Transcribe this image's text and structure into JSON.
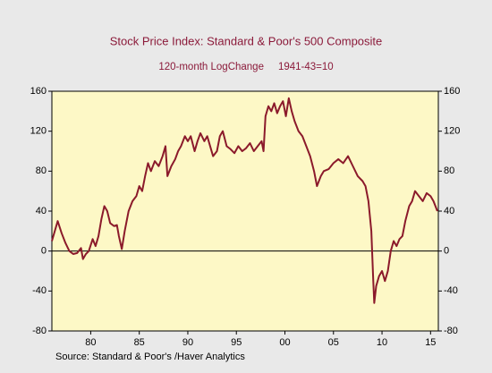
{
  "chart_data": {
    "type": "line",
    "title": "Stock Price Index: Standard & Poor's 500 Composite",
    "subtitle": "120-month LogChange     1941-43=10",
    "source": "Source:  Standard & Poor's /Haver Analytics",
    "mirror_y_axis": true,
    "zero_line": true,
    "xlim": [
      1976,
      2015.8
    ],
    "xticks": [
      {
        "value": 1980,
        "label": "80"
      },
      {
        "value": 1985,
        "label": "85"
      },
      {
        "value": 1990,
        "label": "90"
      },
      {
        "value": 1995,
        "label": "95"
      },
      {
        "value": 2000,
        "label": "00"
      },
      {
        "value": 2005,
        "label": "05"
      },
      {
        "value": 2010,
        "label": "10"
      },
      {
        "value": 2015,
        "label": "15"
      }
    ],
    "ylim": [
      -80,
      160
    ],
    "yticks": [
      -80,
      -40,
      0,
      40,
      80,
      120,
      160
    ],
    "x": [
      1976.0,
      1976.3,
      1976.6,
      1977.0,
      1977.4,
      1977.8,
      1978.2,
      1978.6,
      1979.0,
      1979.2,
      1979.5,
      1979.8,
      1980.2,
      1980.5,
      1980.8,
      1981.1,
      1981.4,
      1981.7,
      1982.0,
      1982.4,
      1982.7,
      1982.9,
      1983.2,
      1983.5,
      1983.9,
      1984.3,
      1984.7,
      1985.0,
      1985.3,
      1985.6,
      1985.9,
      1986.2,
      1986.6,
      1987.0,
      1987.4,
      1987.7,
      1987.9,
      1988.3,
      1988.7,
      1989.0,
      1989.3,
      1989.7,
      1990.0,
      1990.3,
      1990.7,
      1991.0,
      1991.3,
      1991.7,
      1992.0,
      1992.3,
      1992.6,
      1993.0,
      1993.3,
      1993.6,
      1994.0,
      1994.4,
      1994.8,
      1995.2,
      1995.6,
      1996.0,
      1996.4,
      1996.8,
      1997.2,
      1997.6,
      1997.8,
      1998.0,
      1998.3,
      1998.6,
      1998.9,
      1999.2,
      1999.5,
      1999.8,
      2000.1,
      2000.4,
      2000.7,
      2001.0,
      2001.4,
      2001.8,
      2002.2,
      2002.6,
      2003.0,
      2003.3,
      2003.7,
      2004.0,
      2004.5,
      2005.0,
      2005.5,
      2006.0,
      2006.5,
      2007.0,
      2007.5,
      2008.0,
      2008.3,
      2008.6,
      2008.9,
      2009.1,
      2009.2,
      2009.4,
      2009.7,
      2010.0,
      2010.3,
      2010.6,
      2010.9,
      2011.2,
      2011.5,
      2011.8,
      2012.1,
      2012.4,
      2012.8,
      2013.1,
      2013.4,
      2013.8,
      2014.2,
      2014.6,
      2015.0,
      2015.3,
      2015.5,
      2015.7
    ],
    "series": [
      {
        "color": "#8b1a2b",
        "values": [
          10,
          20,
          30,
          18,
          8,
          0,
          -3,
          -2,
          3,
          -8,
          -3,
          0,
          12,
          5,
          15,
          32,
          45,
          40,
          28,
          25,
          26,
          15,
          2,
          20,
          40,
          50,
          55,
          65,
          60,
          75,
          88,
          80,
          90,
          85,
          95,
          105,
          75,
          85,
          92,
          100,
          105,
          115,
          110,
          115,
          100,
          110,
          118,
          110,
          115,
          105,
          95,
          100,
          115,
          120,
          105,
          102,
          98,
          105,
          100,
          103,
          108,
          100,
          105,
          110,
          100,
          135,
          145,
          140,
          148,
          138,
          145,
          150,
          135,
          153,
          140,
          130,
          120,
          115,
          105,
          95,
          80,
          65,
          75,
          80,
          82,
          88,
          92,
          88,
          95,
          85,
          75,
          70,
          65,
          50,
          20,
          -30,
          -52,
          -35,
          -25,
          -20,
          -30,
          -20,
          0,
          10,
          5,
          12,
          15,
          30,
          45,
          50,
          60,
          55,
          50,
          58,
          55,
          50,
          45,
          40
        ]
      }
    ]
  }
}
